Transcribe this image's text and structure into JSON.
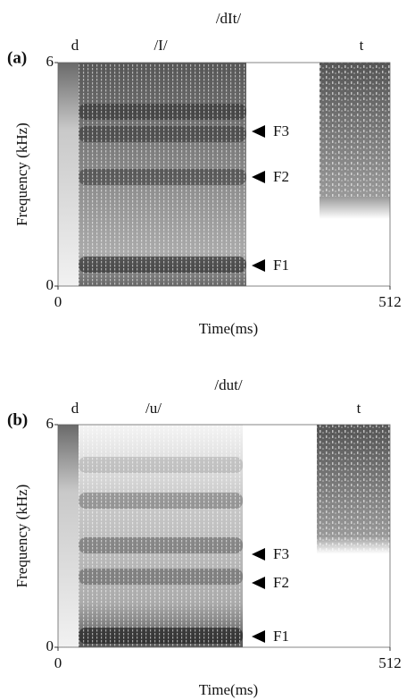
{
  "chart_data": [
    {
      "type": "spectrogram",
      "panel_label": "(a)",
      "title": "/dIt/",
      "segments": [
        "d",
        "/I/",
        "t"
      ],
      "formants": [
        "F3",
        "F2",
        "F1"
      ],
      "xlabel": "Time(ms)",
      "ylabel": "Frequency (kHz)",
      "xlim": [
        0,
        512
      ],
      "ylim": [
        0,
        6
      ],
      "xticks": [
        0,
        512
      ],
      "yticks": [
        0,
        6
      ]
    },
    {
      "type": "spectrogram",
      "panel_label": "(b)",
      "title": "/dut/",
      "segments": [
        "d",
        "/u/",
        "t"
      ],
      "formants": [
        "F3",
        "F2",
        "F1"
      ],
      "xlabel": "Time(ms)",
      "ylabel": "Frequency (kHz)",
      "xlim": [
        0,
        512
      ],
      "ylim": [
        0,
        6
      ],
      "xticks": [
        0,
        512
      ],
      "yticks": [
        0,
        6
      ]
    }
  ]
}
